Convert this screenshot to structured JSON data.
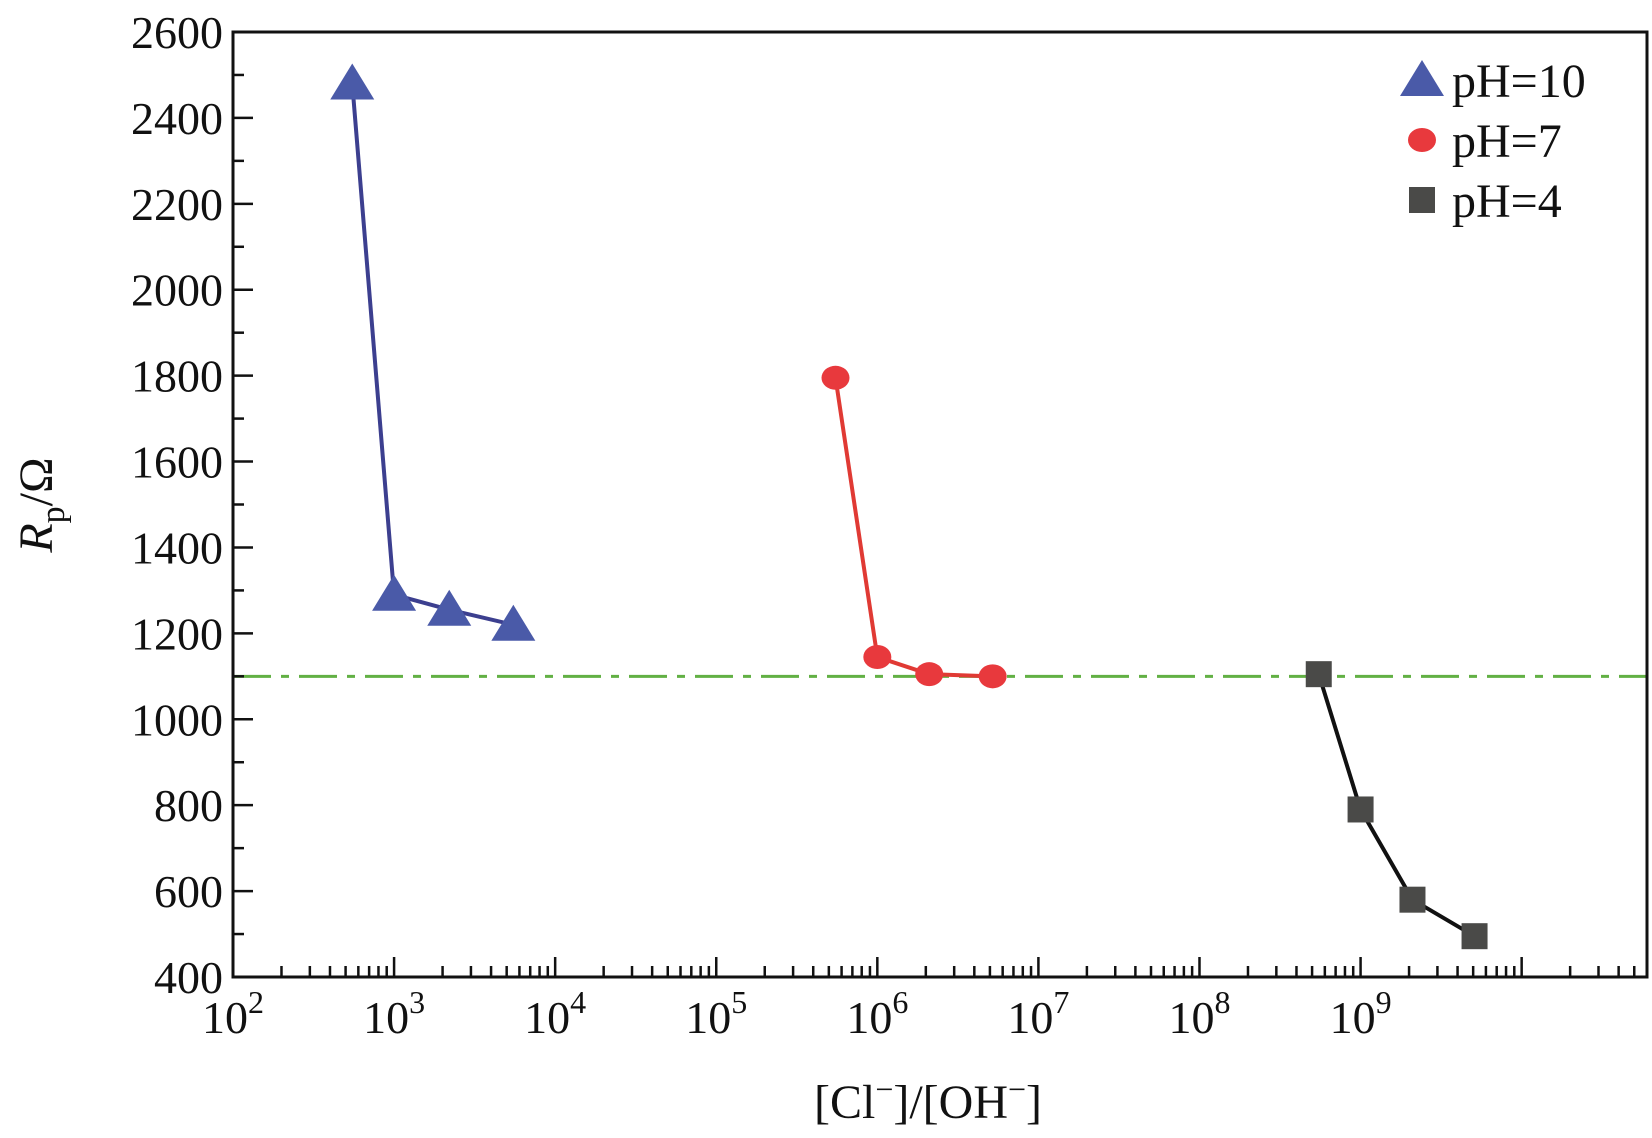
{
  "chart_data": {
    "type": "line",
    "title": "",
    "xlabel": {
      "main": "[Cl",
      "sup1": "−",
      "mid": "]/[OH",
      "sup2": "−",
      "end": "]"
    },
    "ylabel": {
      "main": "R",
      "sub": "p",
      "end": "/Ω"
    },
    "x_scale": "log",
    "xlim": [
      100,
      60000000000
    ],
    "ylim": [
      400,
      2600
    ],
    "x_ticks": [
      {
        "value": 100,
        "base": "10",
        "exp": "2"
      },
      {
        "value": 1000,
        "base": "10",
        "exp": "3"
      },
      {
        "value": 10000,
        "base": "10",
        "exp": "4"
      },
      {
        "value": 100000,
        "base": "10",
        "exp": "5"
      },
      {
        "value": 1000000,
        "base": "10",
        "exp": "6"
      },
      {
        "value": 10000000,
        "base": "10",
        "exp": "7"
      },
      {
        "value": 100000000,
        "base": "10",
        "exp": "8"
      },
      {
        "value": 1000000000,
        "base": "10",
        "exp": "9"
      }
    ],
    "y_ticks": [
      400,
      600,
      800,
      1000,
      1200,
      1400,
      1600,
      1800,
      2000,
      2200,
      2400,
      2600
    ],
    "grid": false,
    "legend_position": "top-right",
    "series": [
      {
        "name": "pH=10",
        "marker": "triangle",
        "color": "#4a5aa8",
        "line_color": "#3c3f8f",
        "x": [
          550,
          1000,
          2200,
          5500
        ],
        "y": [
          2480,
          1290,
          1255,
          1220
        ]
      },
      {
        "name": "pH=7",
        "marker": "circle",
        "color": "#e8393d",
        "line_color": "#e03a34",
        "x": [
          550000,
          1000000,
          2100000,
          5200000
        ],
        "y": [
          1795,
          1145,
          1105,
          1100
        ]
      },
      {
        "name": "pH=4",
        "marker": "square",
        "color": "#4a4a48",
        "line_color": "#111111",
        "x": [
          550000000,
          1000000000,
          2100000000,
          5100000000
        ],
        "y": [
          1105,
          790,
          580,
          495
        ]
      }
    ],
    "reference_line": {
      "y": 1100,
      "style": "dash-dot",
      "color": "#62b044"
    }
  }
}
